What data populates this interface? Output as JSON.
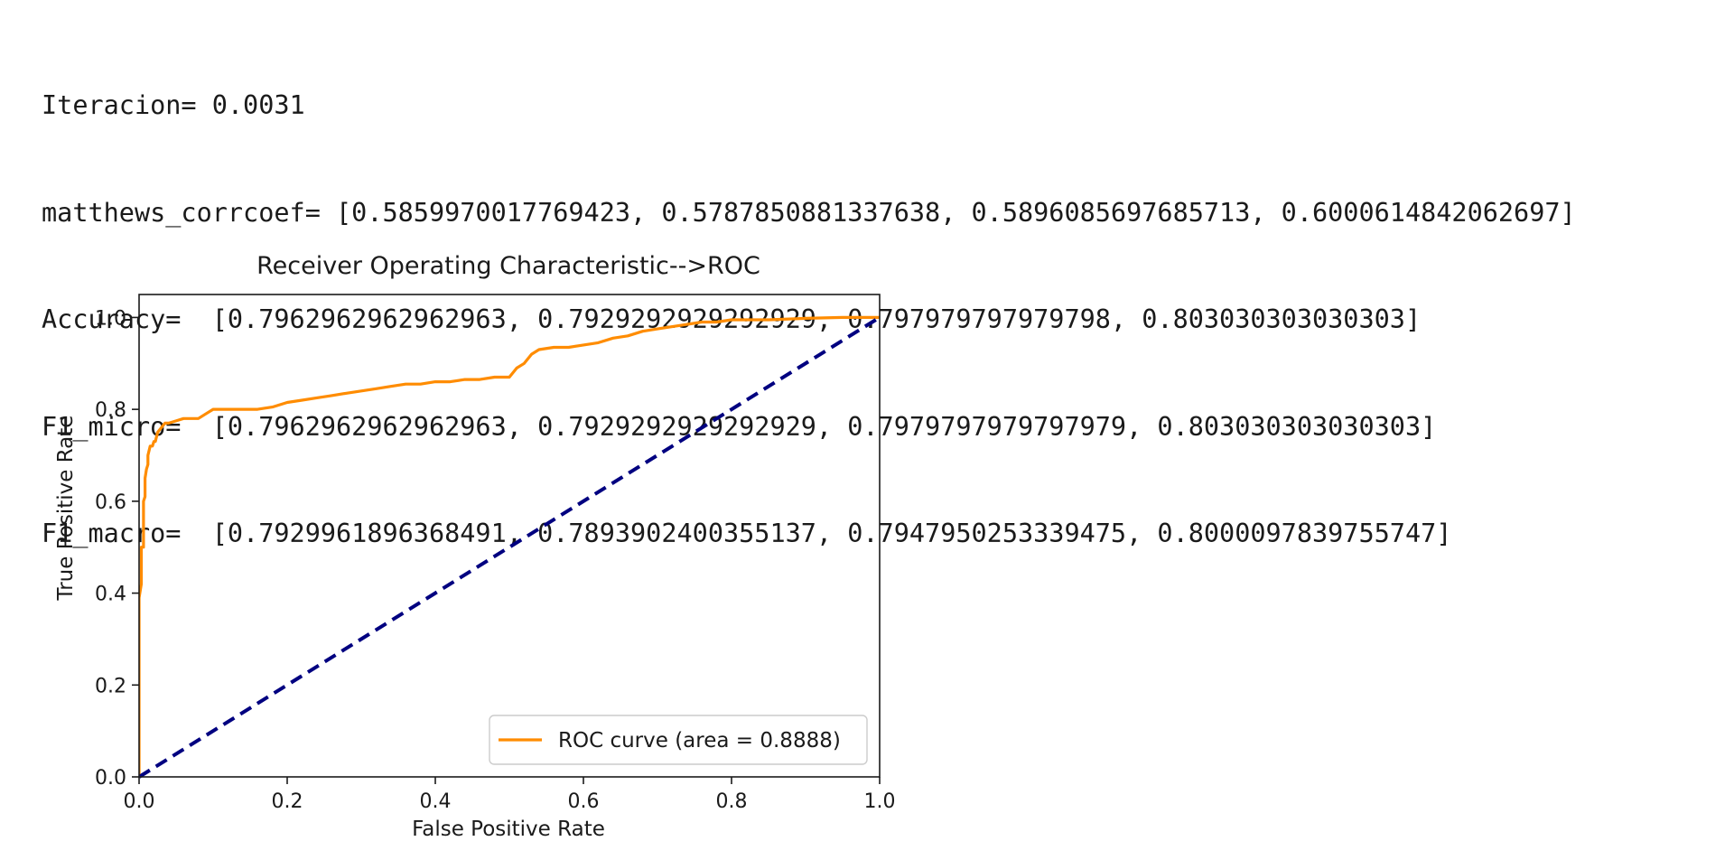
{
  "output": {
    "lines": [
      "Iteracion= 0.0031",
      "matthews_corrcoef= [0.5859970017769423, 0.5787850881337638, 0.5896085697685713, 0.6000614842062697]",
      "Accuracy=  [0.7962962962962963, 0.7929292929292929, 0.797979797979798, 0.803030303030303]",
      "F1_micro=  [0.7962962962962963, 0.7929292929292929, 0.7979797979797979, 0.803030303030303]",
      "F1_macro=  [0.7929961896368491, 0.7893902400355137, 0.7947950253339475, 0.8000097839755747]"
    ]
  },
  "chart_data": {
    "type": "line",
    "title": "Receiver Operating Characteristic-->ROC",
    "xlabel": "False Positive Rate",
    "ylabel": "True Positive Rate",
    "xlim": [
      0.0,
      1.0
    ],
    "ylim": [
      0.0,
      1.05
    ],
    "xticks": [
      "0.0",
      "0.2",
      "0.4",
      "0.6",
      "0.8",
      "1.0"
    ],
    "yticks": [
      "0.0",
      "0.2",
      "0.4",
      "0.6",
      "0.8",
      "1.0"
    ],
    "grid": false,
    "legend": {
      "position": "lower right",
      "entries": [
        "ROC curve (area = 0.8888)"
      ]
    },
    "colors": {
      "roc": "#ff8c00",
      "diagonal": "#000080"
    },
    "series": [
      {
        "name": "ROC curve (area = 0.8888)",
        "style": "solid",
        "x": [
          0.0,
          0.0,
          0.003,
          0.003,
          0.006,
          0.006,
          0.008,
          0.008,
          0.01,
          0.012,
          0.012,
          0.015,
          0.018,
          0.02,
          0.022,
          0.025,
          0.03,
          0.035,
          0.04,
          0.05,
          0.06,
          0.07,
          0.08,
          0.09,
          0.1,
          0.12,
          0.14,
          0.16,
          0.18,
          0.2,
          0.22,
          0.24,
          0.26,
          0.28,
          0.3,
          0.32,
          0.34,
          0.36,
          0.38,
          0.4,
          0.42,
          0.44,
          0.46,
          0.48,
          0.5,
          0.51,
          0.52,
          0.53,
          0.54,
          0.56,
          0.58,
          0.6,
          0.62,
          0.64,
          0.66,
          0.68,
          0.7,
          0.72,
          0.74,
          0.76,
          0.78,
          0.8,
          0.85,
          0.9,
          0.95,
          0.98,
          1.0
        ],
        "y": [
          0.0,
          0.39,
          0.42,
          0.5,
          0.5,
          0.6,
          0.61,
          0.65,
          0.67,
          0.68,
          0.7,
          0.72,
          0.72,
          0.73,
          0.73,
          0.75,
          0.76,
          0.77,
          0.77,
          0.775,
          0.78,
          0.78,
          0.78,
          0.79,
          0.8,
          0.8,
          0.8,
          0.8,
          0.805,
          0.815,
          0.82,
          0.825,
          0.83,
          0.835,
          0.84,
          0.845,
          0.85,
          0.855,
          0.855,
          0.86,
          0.86,
          0.865,
          0.865,
          0.87,
          0.87,
          0.89,
          0.9,
          0.92,
          0.93,
          0.935,
          0.935,
          0.94,
          0.945,
          0.955,
          0.96,
          0.97,
          0.975,
          0.98,
          0.985,
          0.99,
          0.99,
          0.995,
          0.995,
          0.998,
          1.0,
          1.0,
          1.0
        ]
      },
      {
        "name": "",
        "style": "dashed",
        "x": [
          0.0,
          1.0
        ],
        "y": [
          0.0,
          1.0
        ]
      }
    ]
  }
}
